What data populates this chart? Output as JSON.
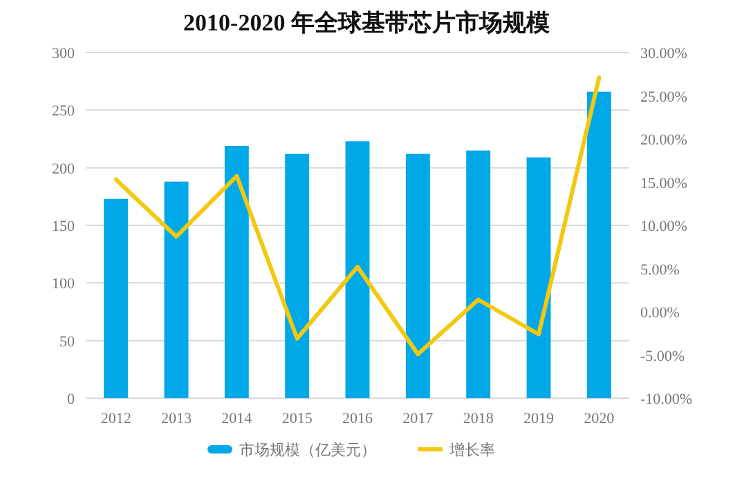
{
  "chart_data": {
    "type": "bar",
    "title": "2010-2020 年全球基带芯片市场规模",
    "categories": [
      "2012",
      "2013",
      "2014",
      "2015",
      "2016",
      "2017",
      "2018",
      "2019",
      "2020"
    ],
    "series": [
      {
        "name": "市场规模（亿美元）",
        "color": "#00a8e8",
        "values": [
          173,
          188,
          219,
          212,
          223,
          212,
          215,
          209,
          266
        ]
      },
      {
        "name": "增长率",
        "type": "line",
        "axis": "y2",
        "color": "#f2c811",
        "values": [
          15.3,
          8.7,
          15.7,
          -3.1,
          5.2,
          -4.9,
          1.4,
          -2.6,
          27.1
        ]
      }
    ],
    "ylim": [
      0,
      300
    ],
    "yticks": [
      0,
      50,
      100,
      150,
      200,
      250,
      300
    ],
    "y2lim": [
      -10,
      30
    ],
    "y2ticks": [
      {
        "value": -10,
        "label": "-10.00%"
      },
      {
        "value": -5,
        "label": "-5.00%"
      },
      {
        "value": 0,
        "label": "0.00%"
      },
      {
        "value": 5,
        "label": "5.00%"
      },
      {
        "value": 10,
        "label": "10.00%"
      },
      {
        "value": 15,
        "label": "15.00%"
      },
      {
        "value": 20,
        "label": "20.00%"
      },
      {
        "value": 25,
        "label": "25.00%"
      },
      {
        "value": 30,
        "label": "30.00%"
      }
    ],
    "grid": "y",
    "legend": "bottom",
    "marker": "none"
  }
}
